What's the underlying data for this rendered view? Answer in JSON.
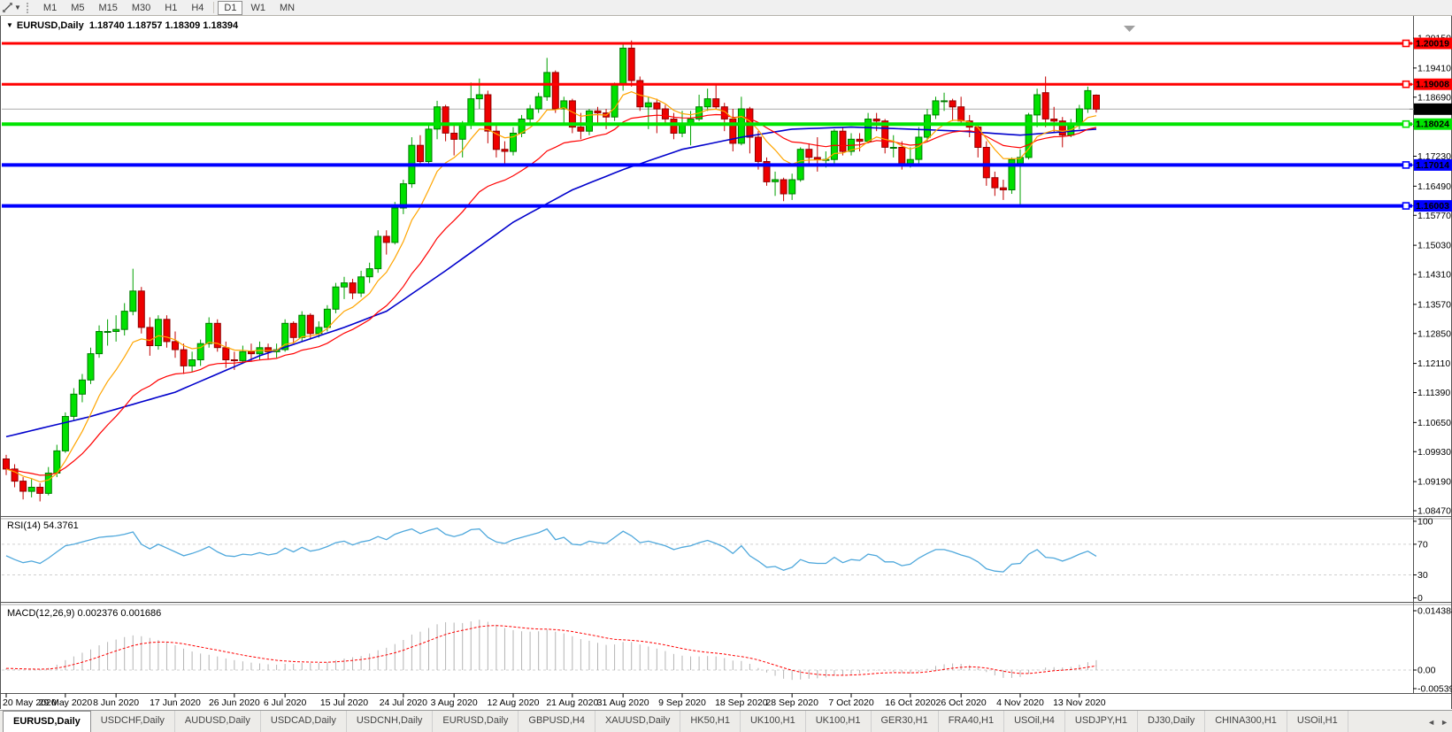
{
  "toolbar": {
    "timeframes": [
      {
        "label": "M1",
        "active": false
      },
      {
        "label": "M5",
        "active": false
      },
      {
        "label": "M15",
        "active": false
      },
      {
        "label": "M30",
        "active": false
      },
      {
        "label": "H1",
        "active": false
      },
      {
        "label": "H4",
        "active": false
      },
      {
        "label": "D1",
        "active": true
      },
      {
        "label": "W1",
        "active": false
      },
      {
        "label": "MN",
        "active": false
      }
    ]
  },
  "chart": {
    "title_symbol": "EURUSD,Daily",
    "title_ohlc": "1.18740 1.18757 1.18309 1.18394"
  },
  "indicators": {
    "rsi_label": "RSI(14) 54.3761",
    "macd_label": "MACD(12,26,9) 0.002376 0.001686"
  },
  "price_axis": {
    "ticks": [
      "1.20150",
      "1.19410",
      "1.18690",
      "1.17970",
      "1.17230",
      "1.16490",
      "1.15770",
      "1.15030",
      "1.14310",
      "1.13570",
      "1.12850",
      "1.12110",
      "1.11390",
      "1.10650",
      "1.09930",
      "1.09190",
      "1.08470"
    ],
    "badges": [
      {
        "label": "1.20019",
        "price": 1.20019,
        "bg": "#FF0000",
        "fg": "#FFFFFF"
      },
      {
        "label": "1.19008",
        "price": 1.19008,
        "bg": "#FF0000",
        "fg": "#FFFFFF"
      },
      {
        "label": "1.18394",
        "price": 1.18394,
        "bg": "#000000",
        "fg": "#FFFFFF"
      },
      {
        "label": "1.18024",
        "price": 1.18024,
        "bg": "#00E400",
        "fg": "#000000"
      },
      {
        "label": "1.17014",
        "price": 1.17014,
        "bg": "#0000FF",
        "fg": "#FFFFFF"
      },
      {
        "label": "1.16003",
        "price": 1.16003,
        "bg": "#0000FF",
        "fg": "#FFFFFF"
      }
    ]
  },
  "rsi_axis": [
    {
      "label": "100",
      "value": 100
    },
    {
      "label": "70",
      "value": 70
    },
    {
      "label": "30",
      "value": 30
    },
    {
      "label": "0",
      "value": 0
    }
  ],
  "macd_axis": [
    {
      "label": "0.014384",
      "value": 0.014384
    },
    {
      "label": "0.00",
      "value": 0
    },
    {
      "label": "-0.005396",
      "value": -0.005396
    }
  ],
  "hlines": [
    {
      "price": 1.20019,
      "color": "#FF0000",
      "width": 3
    },
    {
      "price": 1.19008,
      "color": "#FF0000",
      "width": 3
    },
    {
      "price": 1.18024,
      "color": "#00E400",
      "width": 4
    },
    {
      "price": 1.17014,
      "color": "#0000FF",
      "width": 4
    },
    {
      "price": 1.16003,
      "color": "#0000FF",
      "width": 4
    }
  ],
  "current_price": {
    "label": "1.18394",
    "price": 1.18394,
    "line_color": "#ABABAB"
  },
  "colors": {
    "candle_up": "#00E100",
    "candle_up_border": "#007A00",
    "candle_up_wick": "#00A000",
    "candle_down": "#EE0000",
    "candle_down_border": "#8F0000",
    "candle_down_wick": "#C00000",
    "ma_fast": "#FFA500",
    "ma_mid": "#FF0000",
    "ma_slow": "#0000CC",
    "rsi_line": "#4FA8DC",
    "macd_bar": "#B4B4B4",
    "macd_signal": "#FF0000",
    "grid_dash": "#CFCFCF"
  },
  "tabs": [
    {
      "label": "EURUSD,Daily",
      "active": true
    },
    {
      "label": "USDCHF,Daily"
    },
    {
      "label": "AUDUSD,Daily"
    },
    {
      "label": "USDCAD,Daily"
    },
    {
      "label": "USDCNH,Daily"
    },
    {
      "label": "EURUSD,Daily"
    },
    {
      "label": "GBPUSD,H4"
    },
    {
      "label": "XAUUSD,Daily"
    },
    {
      "label": "HK50,H1"
    },
    {
      "label": "UK100,H1"
    },
    {
      "label": "UK100,H1"
    },
    {
      "label": "GER30,H1"
    },
    {
      "label": "FRA40,H1"
    },
    {
      "label": "USOil,H4"
    },
    {
      "label": "USDJPY,H1"
    },
    {
      "label": "DJ30,Daily"
    },
    {
      "label": "CHINA300,H1"
    },
    {
      "label": "USOil,H1"
    }
  ],
  "chart_data": {
    "type": "candlestick+indicators",
    "symbol": "EURUSD",
    "timeframe": "Daily",
    "ohlc_current": {
      "open": 1.1874,
      "high": 1.18757,
      "low": 1.18309,
      "close": 1.18394
    },
    "ylim": [
      1.0835,
      1.2027
    ],
    "x_ticks": [
      {
        "label": "20 May 2020",
        "index": 0
      },
      {
        "label": "29 May 2020",
        "index": 7
      },
      {
        "label": "8 Jun 2020",
        "index": 13
      },
      {
        "label": "17 Jun 2020",
        "index": 20
      },
      {
        "label": "26 Jun 2020",
        "index": 27
      },
      {
        "label": "6 Jul 2020",
        "index": 33
      },
      {
        "label": "15 Jul 2020",
        "index": 40
      },
      {
        "label": "24 Jul 2020",
        "index": 47
      },
      {
        "label": "3 Aug 2020",
        "index": 53
      },
      {
        "label": "12 Aug 2020",
        "index": 60
      },
      {
        "label": "21 Aug 2020",
        "index": 67
      },
      {
        "label": "31 Aug 2020",
        "index": 73
      },
      {
        "label": "9 Sep 2020",
        "index": 80
      },
      {
        "label": "18 Sep 2020",
        "index": 87
      },
      {
        "label": "28 Sep 2020",
        "index": 93
      },
      {
        "label": "7 Oct 2020",
        "index": 100
      },
      {
        "label": "16 Oct 2020",
        "index": 107
      },
      {
        "label": "26 Oct 2020",
        "index": 113
      },
      {
        "label": "4 Nov 2020",
        "index": 120
      },
      {
        "label": "13 Nov 2020",
        "index": 127
      }
    ],
    "candles": [
      [
        1.0975,
        1.0985,
        1.0935,
        1.095
      ],
      [
        1.095,
        1.0962,
        1.0905,
        1.092
      ],
      [
        1.092,
        1.093,
        1.0875,
        1.0895
      ],
      [
        1.0895,
        1.0925,
        1.088,
        1.0905
      ],
      [
        1.0905,
        1.0915,
        1.087,
        1.089
      ],
      [
        1.089,
        1.0955,
        1.0885,
        1.094
      ],
      [
        1.094,
        1.101,
        1.093,
        1.0995
      ],
      [
        1.0995,
        1.109,
        1.099,
        1.108
      ],
      [
        1.108,
        1.115,
        1.107,
        1.1135
      ],
      [
        1.1135,
        1.1185,
        1.1115,
        1.117
      ],
      [
        1.117,
        1.125,
        1.116,
        1.1235
      ],
      [
        1.1235,
        1.1305,
        1.1225,
        1.129
      ],
      [
        1.129,
        1.132,
        1.1255,
        1.129
      ],
      [
        1.129,
        1.133,
        1.1265,
        1.1295
      ],
      [
        1.1295,
        1.136,
        1.128,
        1.134
      ],
      [
        1.134,
        1.1445,
        1.133,
        1.139
      ],
      [
        1.139,
        1.14,
        1.1285,
        1.13
      ],
      [
        1.13,
        1.1325,
        1.123,
        1.1255
      ],
      [
        1.1255,
        1.133,
        1.1245,
        1.132
      ],
      [
        1.132,
        1.133,
        1.125,
        1.1265
      ],
      [
        1.1265,
        1.129,
        1.1225,
        1.1245
      ],
      [
        1.1245,
        1.126,
        1.1185,
        1.1205
      ],
      [
        1.1205,
        1.124,
        1.119,
        1.122
      ],
      [
        1.122,
        1.127,
        1.1205,
        1.126
      ],
      [
        1.126,
        1.1325,
        1.125,
        1.131
      ],
      [
        1.131,
        1.132,
        1.124,
        1.125
      ],
      [
        1.125,
        1.1265,
        1.12,
        1.122
      ],
      [
        1.122,
        1.124,
        1.1195,
        1.1218
      ],
      [
        1.1218,
        1.1255,
        1.121,
        1.124
      ],
      [
        1.124,
        1.126,
        1.1215,
        1.1235
      ],
      [
        1.1235,
        1.1265,
        1.122,
        1.125
      ],
      [
        1.125,
        1.126,
        1.122,
        1.124
      ],
      [
        1.124,
        1.126,
        1.1225,
        1.1245
      ],
      [
        1.1245,
        1.132,
        1.124,
        1.131
      ],
      [
        1.131,
        1.1315,
        1.126,
        1.1275
      ],
      [
        1.1275,
        1.134,
        1.1265,
        1.133
      ],
      [
        1.133,
        1.1335,
        1.127,
        1.1285
      ],
      [
        1.1285,
        1.1315,
        1.1275,
        1.13
      ],
      [
        1.13,
        1.1355,
        1.129,
        1.1345
      ],
      [
        1.1345,
        1.141,
        1.1335,
        1.14
      ],
      [
        1.14,
        1.1425,
        1.137,
        1.141
      ],
      [
        1.141,
        1.142,
        1.137,
        1.1385
      ],
      [
        1.1385,
        1.144,
        1.1375,
        1.1425
      ],
      [
        1.1425,
        1.146,
        1.141,
        1.1445
      ],
      [
        1.1445,
        1.154,
        1.1435,
        1.1525
      ],
      [
        1.1525,
        1.154,
        1.148,
        1.151
      ],
      [
        1.151,
        1.161,
        1.1505,
        1.1595
      ],
      [
        1.1595,
        1.1665,
        1.158,
        1.1655
      ],
      [
        1.1655,
        1.177,
        1.1645,
        1.175
      ],
      [
        1.175,
        1.1775,
        1.17,
        1.171
      ],
      [
        1.171,
        1.1805,
        1.1705,
        1.179
      ],
      [
        1.179,
        1.186,
        1.1765,
        1.1845
      ],
      [
        1.1845,
        1.185,
        1.176,
        1.178
      ],
      [
        1.178,
        1.18,
        1.1725,
        1.1765
      ],
      [
        1.1765,
        1.181,
        1.172,
        1.18
      ],
      [
        1.18,
        1.1905,
        1.179,
        1.1865
      ],
      [
        1.1865,
        1.1915,
        1.184,
        1.1875
      ],
      [
        1.1875,
        1.1885,
        1.1755,
        1.1785
      ],
      [
        1.1785,
        1.18,
        1.172,
        1.174
      ],
      [
        1.174,
        1.176,
        1.17,
        1.1735
      ],
      [
        1.1735,
        1.1795,
        1.1725,
        1.178
      ],
      [
        1.178,
        1.1825,
        1.177,
        1.1815
      ],
      [
        1.1815,
        1.185,
        1.1805,
        1.184
      ],
      [
        1.184,
        1.188,
        1.183,
        1.187
      ],
      [
        1.187,
        1.1966,
        1.186,
        1.193
      ],
      [
        1.193,
        1.1935,
        1.183,
        1.184
      ],
      [
        1.184,
        1.187,
        1.1805,
        1.186
      ],
      [
        1.186,
        1.1865,
        1.178,
        1.1795
      ],
      [
        1.1795,
        1.183,
        1.1765,
        1.1785
      ],
      [
        1.1785,
        1.184,
        1.1775,
        1.1835
      ],
      [
        1.1835,
        1.1845,
        1.1805,
        1.183
      ],
      [
        1.183,
        1.184,
        1.179,
        1.182
      ],
      [
        1.182,
        1.1905,
        1.181,
        1.19
      ],
      [
        1.19,
        1.2,
        1.1885,
        1.199
      ],
      [
        1.199,
        1.2009,
        1.1895,
        1.191
      ],
      [
        1.191,
        1.192,
        1.1835,
        1.1845
      ],
      [
        1.1845,
        1.187,
        1.179,
        1.1855
      ],
      [
        1.1855,
        1.1865,
        1.178,
        1.184
      ],
      [
        1.184,
        1.185,
        1.18,
        1.1815
      ],
      [
        1.1815,
        1.183,
        1.1765,
        1.178
      ],
      [
        1.178,
        1.1835,
        1.177,
        1.18
      ],
      [
        1.18,
        1.1835,
        1.175,
        1.1815
      ],
      [
        1.1815,
        1.1875,
        1.181,
        1.1845
      ],
      [
        1.1845,
        1.189,
        1.1835,
        1.1865
      ],
      [
        1.1865,
        1.19,
        1.184,
        1.1845
      ],
      [
        1.1845,
        1.1855,
        1.1785,
        1.1815
      ],
      [
        1.1815,
        1.184,
        1.1735,
        1.1755
      ],
      [
        1.1755,
        1.187,
        1.175,
        1.184
      ],
      [
        1.184,
        1.1845,
        1.173,
        1.177
      ],
      [
        1.177,
        1.1785,
        1.169,
        1.171
      ],
      [
        1.171,
        1.172,
        1.165,
        1.166
      ],
      [
        1.166,
        1.1685,
        1.1625,
        1.1665
      ],
      [
        1.1665,
        1.167,
        1.1612,
        1.163
      ],
      [
        1.163,
        1.168,
        1.1615,
        1.1665
      ],
      [
        1.1665,
        1.1745,
        1.166,
        1.174
      ],
      [
        1.174,
        1.1755,
        1.17,
        1.172
      ],
      [
        1.172,
        1.177,
        1.1685,
        1.1715
      ],
      [
        1.1715,
        1.1735,
        1.1695,
        1.1715
      ],
      [
        1.1715,
        1.179,
        1.1705,
        1.1785
      ],
      [
        1.1785,
        1.1795,
        1.1725,
        1.1735
      ],
      [
        1.1735,
        1.178,
        1.1725,
        1.1765
      ],
      [
        1.1765,
        1.178,
        1.1735,
        1.176
      ],
      [
        1.176,
        1.183,
        1.1755,
        1.1815
      ],
      [
        1.1815,
        1.183,
        1.1785,
        1.181
      ],
      [
        1.181,
        1.1815,
        1.173,
        1.1745
      ],
      [
        1.1745,
        1.1775,
        1.172,
        1.1745
      ],
      [
        1.1745,
        1.176,
        1.169,
        1.1705
      ],
      [
        1.1705,
        1.1745,
        1.1695,
        1.1715
      ],
      [
        1.1715,
        1.1795,
        1.1705,
        1.177
      ],
      [
        1.177,
        1.184,
        1.176,
        1.1825
      ],
      [
        1.1825,
        1.187,
        1.1815,
        1.186
      ],
      [
        1.186,
        1.188,
        1.1835,
        1.186
      ],
      [
        1.186,
        1.1865,
        1.181,
        1.1845
      ],
      [
        1.1845,
        1.187,
        1.18,
        1.181
      ],
      [
        1.181,
        1.1825,
        1.177,
        1.1795
      ],
      [
        1.1795,
        1.18,
        1.172,
        1.1745
      ],
      [
        1.1745,
        1.176,
        1.165,
        1.167
      ],
      [
        1.167,
        1.1685,
        1.1625,
        1.1645
      ],
      [
        1.1645,
        1.1665,
        1.1615,
        1.164
      ],
      [
        1.164,
        1.172,
        1.163,
        1.1715
      ],
      [
        1.1705,
        1.174,
        1.1603,
        1.172
      ],
      [
        1.172,
        1.183,
        1.1715,
        1.1825
      ],
      [
        1.1825,
        1.189,
        1.1795,
        1.1875
      ],
      [
        1.188,
        1.192,
        1.1795,
        1.1815
      ],
      [
        1.1815,
        1.1845,
        1.178,
        1.181
      ],
      [
        1.181,
        1.182,
        1.1745,
        1.1775
      ],
      [
        1.1775,
        1.1815,
        1.177,
        1.18
      ],
      [
        1.18,
        1.185,
        1.179,
        1.184
      ],
      [
        1.184,
        1.1895,
        1.183,
        1.1885
      ],
      [
        1.1874,
        1.18757,
        1.18309,
        1.18394
      ]
    ],
    "ma_blue_anchors": [
      [
        0,
        1.103
      ],
      [
        10,
        1.108
      ],
      [
        20,
        1.114
      ],
      [
        30,
        1.123
      ],
      [
        40,
        1.13
      ],
      [
        45,
        1.134
      ],
      [
        52,
        1.144
      ],
      [
        60,
        1.156
      ],
      [
        67,
        1.164
      ],
      [
        73,
        1.169
      ],
      [
        80,
        1.174
      ],
      [
        87,
        1.177
      ],
      [
        93,
        1.179
      ],
      [
        100,
        1.1795
      ],
      [
        107,
        1.179
      ],
      [
        113,
        1.1785
      ],
      [
        120,
        1.1775
      ],
      [
        129,
        1.179
      ]
    ],
    "ma_periods": {
      "fast": 8,
      "mid": 21,
      "signal": 9
    },
    "rsi": [
      55,
      50,
      46,
      48,
      45,
      52,
      60,
      68,
      70,
      73,
      76,
      79,
      80,
      81,
      83,
      86,
      70,
      64,
      70,
      65,
      60,
      55,
      58,
      62,
      67,
      60,
      55,
      54,
      57,
      56,
      59,
      56,
      58,
      65,
      60,
      66,
      61,
      63,
      67,
      72,
      74,
      69,
      73,
      75,
      80,
      76,
      83,
      87,
      90,
      84,
      88,
      91,
      83,
      80,
      83,
      89,
      90,
      79,
      73,
      71,
      76,
      79,
      82,
      85,
      90,
      76,
      79,
      70,
      69,
      74,
      72,
      71,
      79,
      87,
      81,
      72,
      74,
      71,
      68,
      63,
      66,
      68,
      72,
      75,
      71,
      66,
      58,
      68,
      55,
      48,
      40,
      41,
      36,
      40,
      50,
      46,
      45,
      45,
      53,
      46,
      50,
      49,
      57,
      55,
      47,
      47,
      42,
      44,
      52,
      58,
      63,
      63,
      60,
      56,
      53,
      47,
      38,
      35,
      34,
      44,
      45,
      57,
      63,
      53,
      52,
      48,
      52,
      57,
      61,
      54.4
    ],
    "macd": [
      0.0004,
      0.0002,
      0.0,
      0.0,
      0.0001,
      0.0005,
      0.0013,
      0.0024,
      0.0033,
      0.0042,
      0.005,
      0.006,
      0.0068,
      0.0074,
      0.008,
      0.0084,
      0.0082,
      0.0078,
      0.0073,
      0.0068,
      0.006,
      0.0052,
      0.0045,
      0.004,
      0.0037,
      0.0033,
      0.0028,
      0.0024,
      0.0021,
      0.0018,
      0.0016,
      0.0014,
      0.0013,
      0.0015,
      0.0015,
      0.0017,
      0.0017,
      0.0017,
      0.0019,
      0.0024,
      0.0028,
      0.0031,
      0.0034,
      0.004,
      0.0048,
      0.0054,
      0.0063,
      0.0073,
      0.0086,
      0.0093,
      0.0102,
      0.0111,
      0.0116,
      0.0115,
      0.0114,
      0.0118,
      0.0122,
      0.0117,
      0.011,
      0.0102,
      0.0097,
      0.0094,
      0.0093,
      0.0094,
      0.0098,
      0.0093,
      0.0089,
      0.0082,
      0.0075,
      0.0071,
      0.0066,
      0.0061,
      0.0062,
      0.0068,
      0.0068,
      0.0062,
      0.0057,
      0.0052,
      0.0046,
      0.0039,
      0.0035,
      0.0033,
      0.0033,
      0.0034,
      0.0033,
      0.0029,
      0.0023,
      0.0022,
      0.0015,
      0.0005,
      -0.0006,
      -0.0014,
      -0.0021,
      -0.0024,
      -0.0023,
      -0.0021,
      -0.002,
      -0.0018,
      -0.0014,
      -0.0013,
      -0.001,
      -0.0008,
      -0.0004,
      -0.0001,
      -0.0002,
      -0.0004,
      -0.0007,
      -0.0008,
      -0.0004,
      0.0003,
      0.001,
      0.0014,
      0.0016,
      0.0015,
      0.0012,
      0.0005,
      -0.0005,
      -0.0013,
      -0.0019,
      -0.0019,
      -0.0017,
      -0.0009,
      0.0001,
      0.0006,
      0.0007,
      0.0006,
      0.0008,
      0.0013,
      0.0019,
      0.0024
    ]
  }
}
